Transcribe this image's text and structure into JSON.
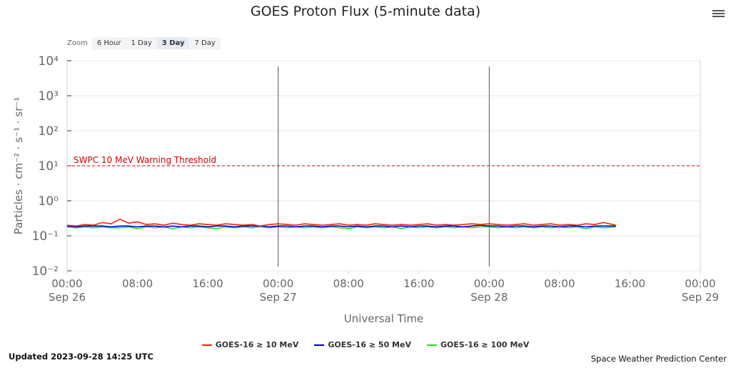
{
  "header": {
    "title": "GOES Proton Flux (5-minute data)",
    "menu_icon": "hamburger-icon"
  },
  "zoom": {
    "label": "Zoom",
    "buttons": [
      "6 Hour",
      "1 Day",
      "3 Day",
      "7 Day"
    ],
    "selected": "3 Day"
  },
  "footer": {
    "updated": "Updated 2023-09-28 14:25 UTC",
    "credit": "Space Weather Prediction Center"
  },
  "chart_data": {
    "type": "line",
    "title": "GOES Proton Flux (5-minute data)",
    "xlabel": "Universal Time",
    "ylabel": "Particles · cm⁻² · s⁻¹ · sr⁻¹",
    "yscale": "log",
    "ylim": [
      0.01,
      10000
    ],
    "yticks": [
      "10⁻²",
      "10⁻¹",
      "10⁰",
      "10¹",
      "10²",
      "10³",
      "10⁴"
    ],
    "xlim_hours": [
      0,
      72
    ],
    "xticks": [
      {
        "h": 0,
        "t": "00:00",
        "d": "Sep 26"
      },
      {
        "h": 8,
        "t": "08:00",
        "d": ""
      },
      {
        "h": 16,
        "t": "16:00",
        "d": ""
      },
      {
        "h": 24,
        "t": "00:00",
        "d": "Sep 27"
      },
      {
        "h": 32,
        "t": "08:00",
        "d": ""
      },
      {
        "h": 40,
        "t": "16:00",
        "d": ""
      },
      {
        "h": 48,
        "t": "00:00",
        "d": "Sep 28"
      },
      {
        "h": 56,
        "t": "08:00",
        "d": ""
      },
      {
        "h": 64,
        "t": "16:00",
        "d": ""
      },
      {
        "h": 72,
        "t": "00:00",
        "d": "Sep 29"
      }
    ],
    "day_lines_hours": [
      24,
      48
    ],
    "threshold": {
      "value": 10,
      "label": "SWPC 10 MeV Warning Threshold",
      "color": "#cc0000"
    },
    "x_hours_step": 1,
    "series": [
      {
        "name": "GOES-16 ≥ 10 MeV",
        "color": "#ff2200",
        "values": [
          0.2,
          0.19,
          0.21,
          0.2,
          0.24,
          0.22,
          0.3,
          0.23,
          0.25,
          0.21,
          0.22,
          0.2,
          0.23,
          0.21,
          0.2,
          0.22,
          0.21,
          0.2,
          0.22,
          0.21,
          0.2,
          0.21,
          0.19,
          0.21,
          0.22,
          0.21,
          0.2,
          0.22,
          0.21,
          0.2,
          0.21,
          0.22,
          0.2,
          0.21,
          0.2,
          0.22,
          0.21,
          0.2,
          0.21,
          0.2,
          0.21,
          0.22,
          0.2,
          0.21,
          0.2,
          0.21,
          0.22,
          0.21,
          0.22,
          0.21,
          0.2,
          0.21,
          0.22,
          0.2,
          0.21,
          0.22,
          0.2,
          0.21,
          0.2,
          0.22,
          0.21,
          0.24,
          0.2
        ]
      },
      {
        "name": "GOES-16 ≥ 50 MeV",
        "color": "#0000cc",
        "values": [
          0.19,
          0.18,
          0.19,
          0.19,
          0.19,
          0.18,
          0.19,
          0.19,
          0.18,
          0.19,
          0.19,
          0.18,
          0.19,
          0.18,
          0.19,
          0.19,
          0.18,
          0.19,
          0.19,
          0.18,
          0.19,
          0.19,
          0.19,
          0.18,
          0.19,
          0.19,
          0.18,
          0.19,
          0.19,
          0.18,
          0.19,
          0.19,
          0.18,
          0.19,
          0.18,
          0.19,
          0.19,
          0.18,
          0.19,
          0.18,
          0.19,
          0.19,
          0.18,
          0.19,
          0.19,
          0.18,
          0.19,
          0.2,
          0.19,
          0.19,
          0.18,
          0.19,
          0.19,
          0.18,
          0.19,
          0.19,
          0.18,
          0.19,
          0.19,
          0.18,
          0.19,
          0.19,
          0.19
        ]
      },
      {
        "name": "GOES-16 ≥ 100 MeV",
        "color": "#22dd22",
        "values": [
          0.18,
          0.17,
          0.18,
          0.17,
          0.18,
          0.17,
          0.17,
          0.18,
          0.16,
          0.18,
          0.17,
          0.18,
          0.16,
          0.18,
          0.17,
          0.18,
          0.17,
          0.16,
          0.18,
          0.17,
          0.18,
          0.17,
          0.18,
          0.17,
          0.18,
          0.17,
          0.18,
          0.17,
          0.18,
          0.17,
          0.18,
          0.17,
          0.16,
          0.18,
          0.17,
          0.18,
          0.17,
          0.18,
          0.16,
          0.18,
          0.17,
          0.18,
          0.17,
          0.18,
          0.17,
          0.18,
          0.17,
          0.18,
          0.18,
          0.17,
          0.18,
          0.17,
          0.18,
          0.17,
          0.18,
          0.17,
          0.18,
          0.17,
          0.18,
          0.16,
          0.18,
          0.17,
          0.18
        ]
      }
    ]
  }
}
